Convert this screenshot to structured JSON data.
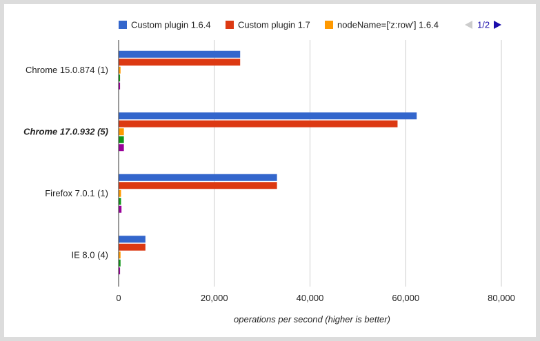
{
  "chart_data": {
    "type": "bar",
    "orientation": "horizontal",
    "categories": [
      "Chrome 15.0.874 (1)",
      "Chrome 17.0.932 (5)",
      "Firefox 7.0.1 (1)",
      "IE 8.0 (4)"
    ],
    "highlighted_category": "Chrome 17.0.932 (5)",
    "series": [
      {
        "name": "Custom plugin 1.6.4",
        "color": "#3366cc",
        "values": [
          25400,
          62300,
          33100,
          5600
        ]
      },
      {
        "name": "Custom plugin 1.7",
        "color": "#dc3912",
        "values": [
          25400,
          58300,
          33100,
          5600
        ]
      },
      {
        "name": "nodeName=['z:row'] 1.6.4",
        "color": "#ff9900",
        "values": [
          400,
          1100,
          500,
          400
        ]
      },
      {
        "name": "",
        "color": "#109618",
        "values": [
          300,
          1100,
          500,
          400
        ]
      },
      {
        "name": "",
        "color": "#990099",
        "values": [
          300,
          1100,
          600,
          300
        ]
      }
    ],
    "xlabel": "operations per second (higher is better)",
    "ylabel": "",
    "xlim": [
      0,
      80000
    ],
    "xticks": [
      0,
      20000,
      40000,
      60000,
      80000
    ],
    "xtick_labels": [
      "0",
      "20,000",
      "40,000",
      "60,000",
      "80,000"
    ],
    "grid": true,
    "legend_placement": "top",
    "legend_page": "1/2"
  },
  "colors": {
    "grid": "#cccccc",
    "axis": "#333333",
    "page_arrow_active": "#1a0dab",
    "page_arrow_inactive": "#cccccc"
  }
}
